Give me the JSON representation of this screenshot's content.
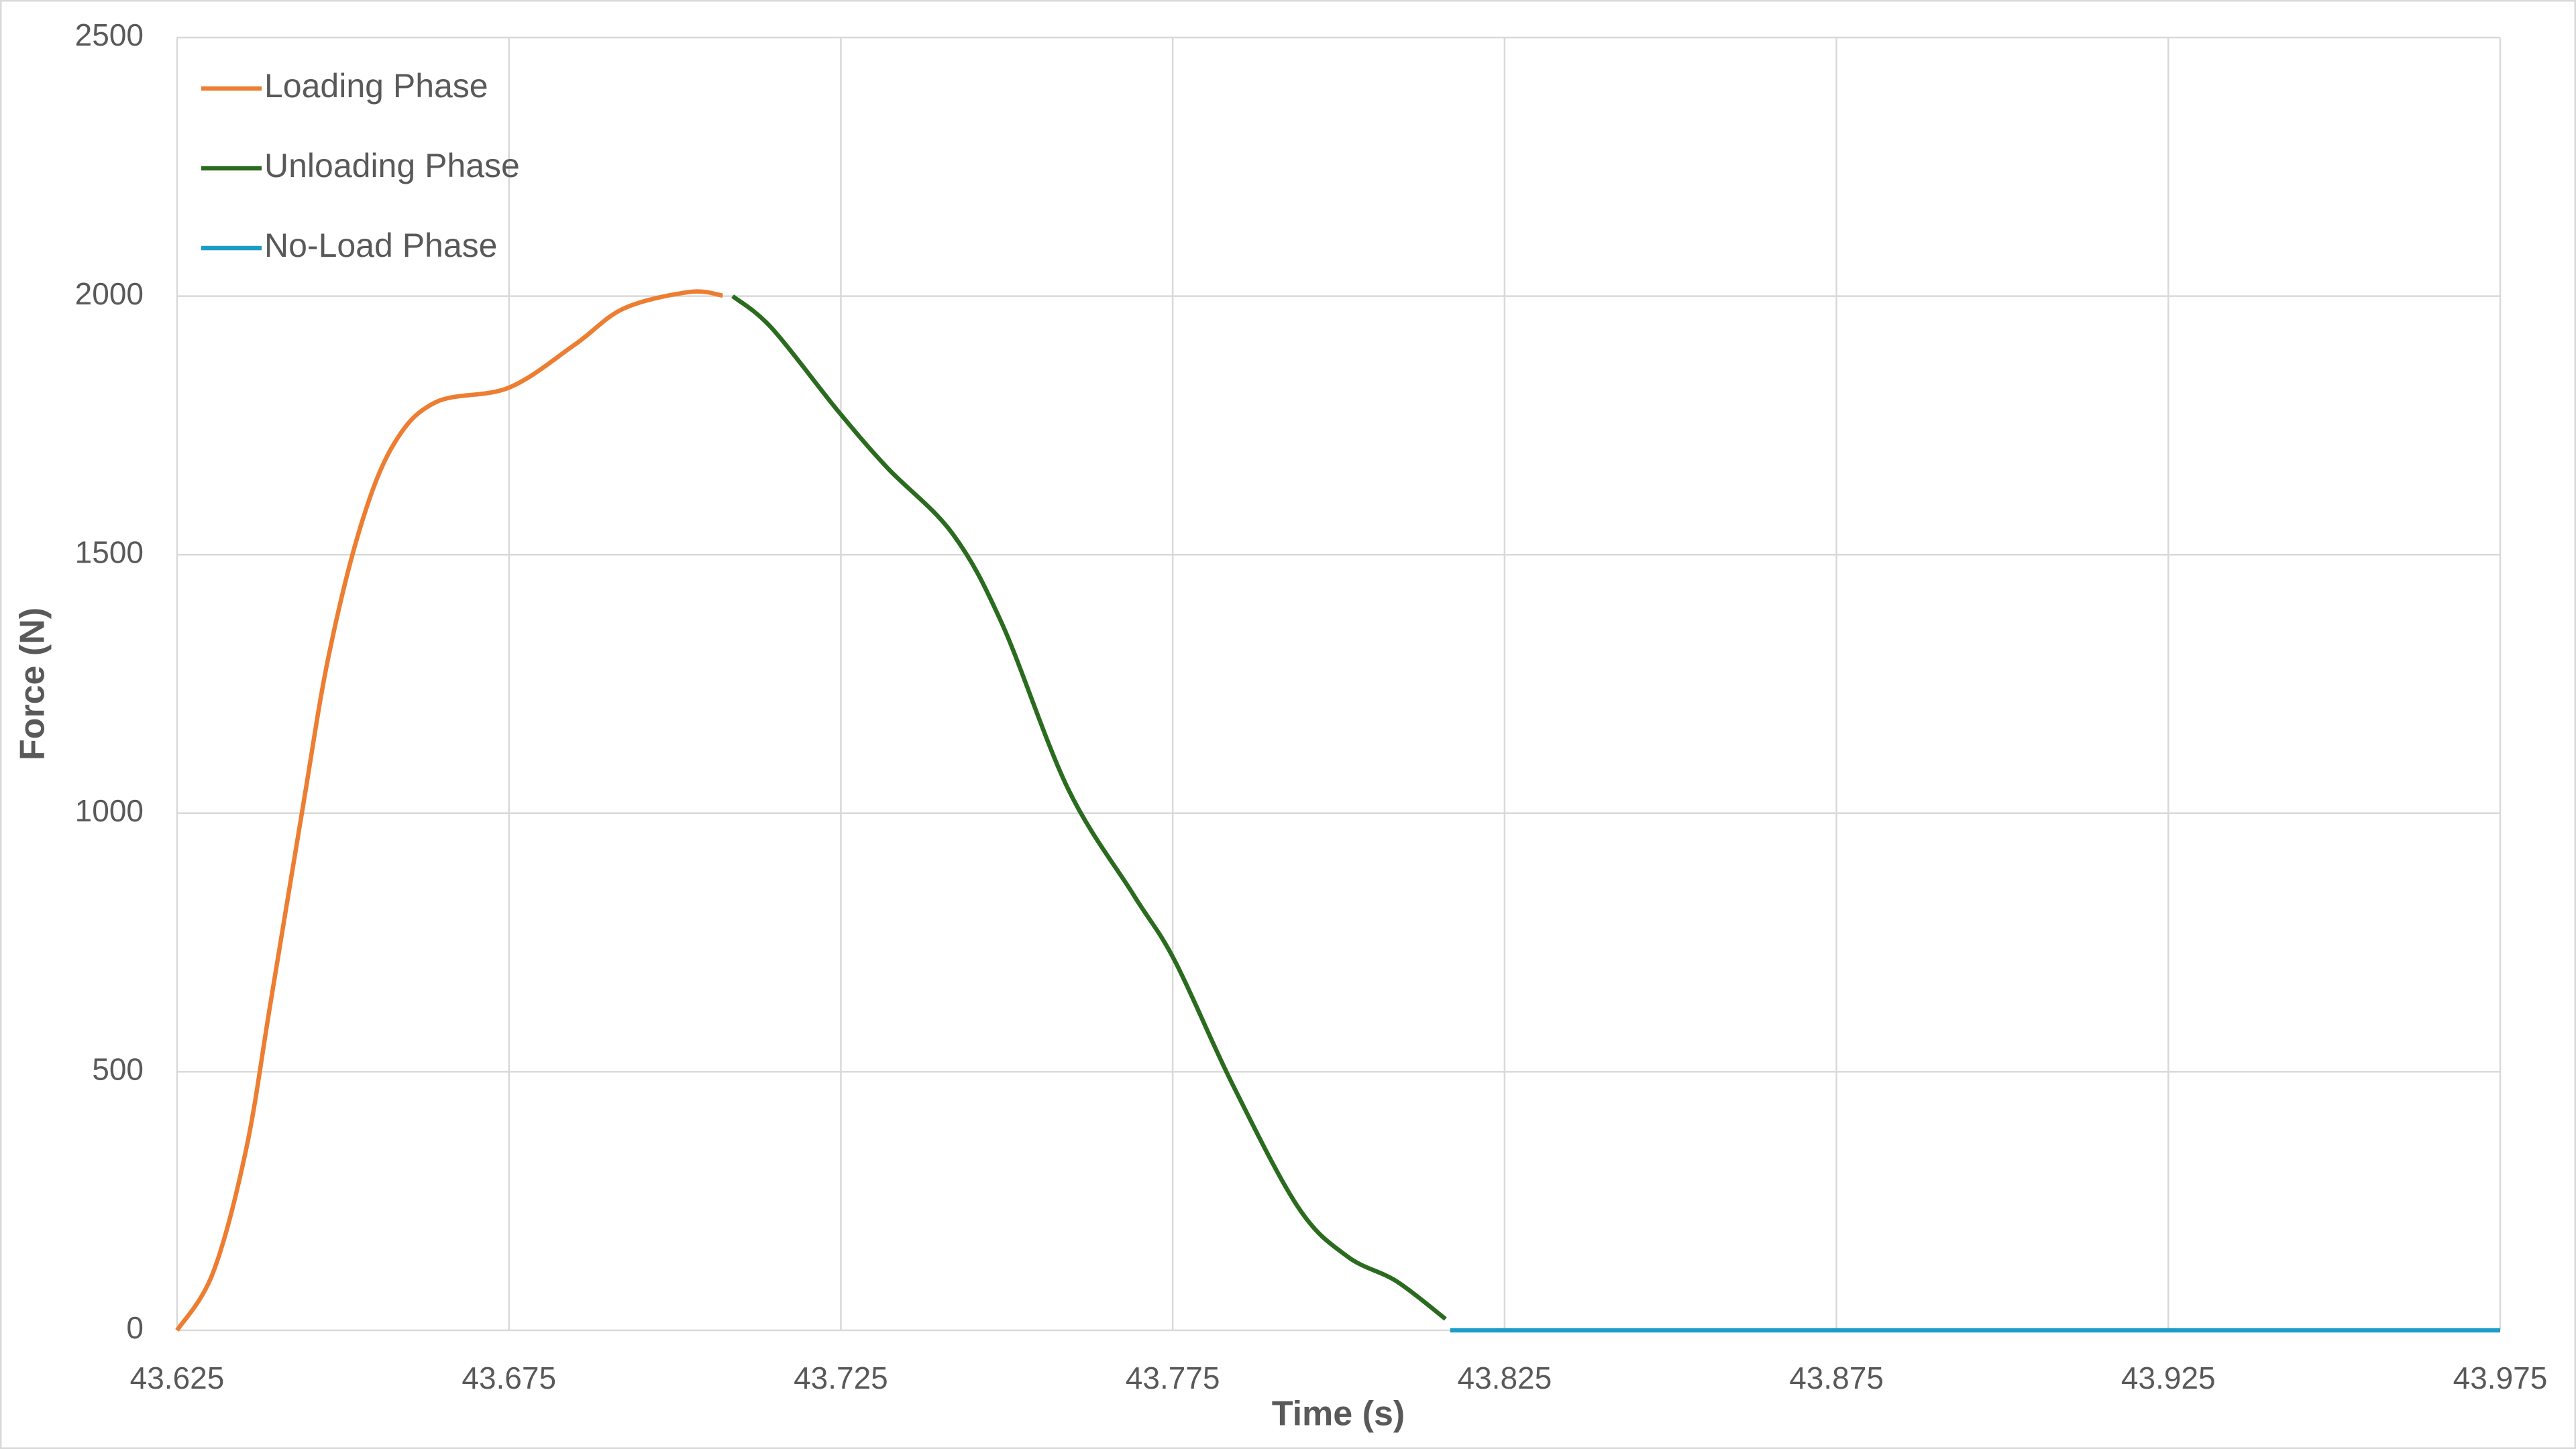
{
  "chart_data": {
    "type": "line",
    "x_label": "Time (s)",
    "y_label": "Force (N)",
    "xlim": [
      43.625,
      43.975
    ],
    "xticks": [
      43.625,
      43.675,
      43.725,
      43.775,
      43.825,
      43.875,
      43.925,
      43.975
    ],
    "ylim": [
      0,
      2500
    ],
    "yticks": [
      0,
      500,
      1000,
      1500,
      2000,
      2500
    ],
    "grid": true,
    "legend": "top-left",
    "series": [
      {
        "name": "Loading Phase",
        "color": "#ed7d31",
        "x": [
          43.625,
          43.6304,
          43.6354,
          43.6391,
          43.644,
          43.6478,
          43.6527,
          43.6577,
          43.664,
          43.675,
          43.6849,
          43.6923,
          43.7022,
          43.7072
        ],
        "values": [
          0,
          111,
          350,
          635,
          1016,
          1302,
          1557,
          1715,
          1795,
          1823,
          1906,
          1976,
          2008,
          2001
        ]
      },
      {
        "name": "Unloading Phase",
        "color": "#2b6b1f",
        "x": [
          43.7087,
          43.7146,
          43.7245,
          43.732,
          43.7418,
          43.7493,
          43.7592,
          43.7691,
          43.7753,
          43.784,
          43.7939,
          43.8013,
          43.8087,
          43.8161
        ],
        "values": [
          2000,
          1938,
          1779,
          1668,
          1541,
          1366,
          1048,
          842,
          715,
          476,
          238,
          143,
          95,
          22
        ]
      },
      {
        "name": "No-Load Phase",
        "color": "#1c9cc8",
        "x": [
          43.8168,
          43.975
        ],
        "values": [
          0,
          0
        ]
      }
    ]
  }
}
